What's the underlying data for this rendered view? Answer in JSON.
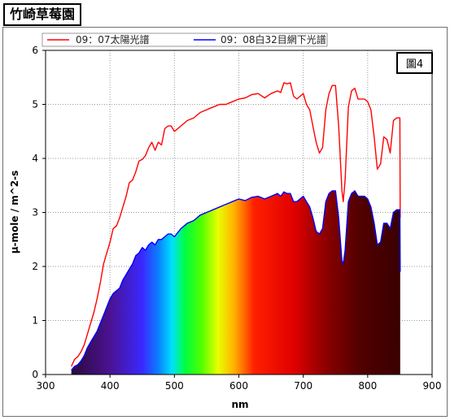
{
  "page_title": "竹崎草莓園",
  "chart_data": {
    "type": "line",
    "figure_label": "圖4",
    "xlabel": "nm",
    "ylabel": "μ-mole / m^2-s",
    "xlim": [
      300,
      900
    ],
    "ylim": [
      0,
      6
    ],
    "xticks": [
      300,
      400,
      500,
      600,
      700,
      800,
      900
    ],
    "yticks": [
      0,
      1,
      2,
      3,
      4,
      5,
      6
    ],
    "grid": true,
    "legend_position": "top",
    "series": [
      {
        "name": "09：07太陽光譜",
        "color": "#ff0000",
        "x": [
          340,
          345,
          350,
          355,
          360,
          365,
          370,
          375,
          380,
          385,
          390,
          395,
          400,
          405,
          410,
          415,
          420,
          425,
          430,
          435,
          440,
          445,
          450,
          455,
          460,
          465,
          470,
          475,
          480,
          485,
          490,
          495,
          500,
          510,
          520,
          530,
          540,
          550,
          560,
          570,
          580,
          590,
          600,
          610,
          620,
          630,
          640,
          650,
          660,
          665,
          670,
          675,
          680,
          685,
          690,
          695,
          700,
          705,
          710,
          715,
          720,
          725,
          730,
          735,
          740,
          745,
          750,
          755,
          760,
          762,
          765,
          770,
          775,
          780,
          785,
          790,
          795,
          800,
          805,
          810,
          815,
          820,
          825,
          830,
          835,
          840,
          845,
          850,
          850.5
        ],
        "values": [
          0.15,
          0.28,
          0.33,
          0.42,
          0.55,
          0.75,
          0.95,
          1.15,
          1.4,
          1.7,
          2.05,
          2.25,
          2.45,
          2.7,
          2.75,
          2.9,
          3.1,
          3.3,
          3.55,
          3.6,
          3.75,
          3.95,
          3.98,
          4.05,
          4.2,
          4.3,
          4.15,
          4.3,
          4.25,
          4.55,
          4.6,
          4.6,
          4.5,
          4.6,
          4.7,
          4.75,
          4.85,
          4.9,
          4.95,
          5.0,
          5.0,
          5.05,
          5.1,
          5.12,
          5.18,
          5.2,
          5.12,
          5.2,
          5.25,
          5.22,
          5.4,
          5.38,
          5.4,
          5.15,
          5.1,
          5.15,
          5.2,
          5.0,
          4.9,
          4.6,
          4.3,
          4.1,
          4.2,
          4.9,
          5.2,
          5.35,
          5.35,
          4.6,
          3.4,
          3.2,
          3.6,
          4.95,
          5.25,
          5.3,
          5.1,
          5.1,
          5.1,
          5.05,
          4.9,
          4.4,
          3.8,
          3.9,
          4.4,
          4.35,
          4.1,
          4.7,
          4.75,
          4.75,
          2.9
        ]
      },
      {
        "name": "09：08白32目網下光譜",
        "color": "#0000ff",
        "x": [
          340,
          345,
          350,
          355,
          360,
          365,
          370,
          375,
          380,
          385,
          390,
          395,
          400,
          405,
          410,
          415,
          420,
          425,
          430,
          435,
          440,
          445,
          450,
          455,
          460,
          465,
          470,
          475,
          480,
          485,
          490,
          495,
          500,
          510,
          520,
          530,
          540,
          550,
          560,
          570,
          580,
          590,
          600,
          610,
          620,
          630,
          640,
          650,
          660,
          665,
          670,
          675,
          680,
          685,
          690,
          695,
          700,
          705,
          710,
          715,
          720,
          725,
          730,
          735,
          740,
          745,
          750,
          755,
          760,
          762,
          765,
          770,
          775,
          780,
          785,
          790,
          795,
          800,
          805,
          810,
          815,
          820,
          825,
          830,
          835,
          840,
          845,
          850,
          850.5
        ],
        "values": [
          0.08,
          0.15,
          0.18,
          0.25,
          0.35,
          0.5,
          0.6,
          0.7,
          0.8,
          0.95,
          1.1,
          1.25,
          1.4,
          1.5,
          1.55,
          1.6,
          1.75,
          1.85,
          1.95,
          2.05,
          2.2,
          2.25,
          2.35,
          2.3,
          2.4,
          2.45,
          2.4,
          2.5,
          2.5,
          2.55,
          2.6,
          2.6,
          2.55,
          2.7,
          2.8,
          2.85,
          2.95,
          3.0,
          3.05,
          3.1,
          3.15,
          3.2,
          3.25,
          3.22,
          3.28,
          3.3,
          3.25,
          3.3,
          3.35,
          3.3,
          3.38,
          3.35,
          3.35,
          3.2,
          3.2,
          3.25,
          3.3,
          3.2,
          3.1,
          2.9,
          2.65,
          2.6,
          2.7,
          3.2,
          3.35,
          3.4,
          3.4,
          2.9,
          2.1,
          2.05,
          2.3,
          3.2,
          3.35,
          3.4,
          3.3,
          3.3,
          3.3,
          3.25,
          3.1,
          2.8,
          2.4,
          2.45,
          2.8,
          2.8,
          2.7,
          3.0,
          3.05,
          3.05,
          1.9
        ]
      }
    ]
  }
}
